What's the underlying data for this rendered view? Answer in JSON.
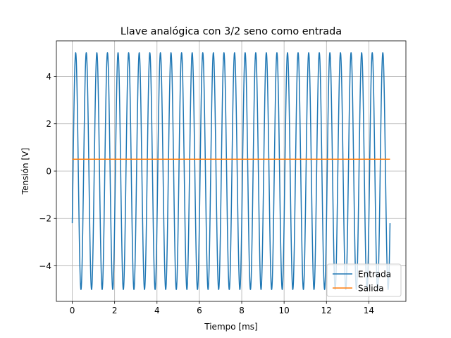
{
  "chart_data": {
    "type": "line",
    "title": "Llave analógica con 3/2 seno como entrada",
    "xlabel": "Tiempo [ms]",
    "ylabel": "Tensión [V]",
    "xlim": [
      -0.75,
      15.75
    ],
    "ylim": [
      -5.5,
      5.5
    ],
    "xticks": [
      0,
      2,
      4,
      6,
      8,
      10,
      12,
      14
    ],
    "yticks": [
      -4,
      -2,
      0,
      2,
      4
    ],
    "xtick_labels": [
      "0",
      "2",
      "4",
      "6",
      "8",
      "10",
      "12",
      "14"
    ],
    "ytick_labels": [
      "−4",
      "−2",
      "0",
      "2",
      "4"
    ],
    "grid": true,
    "legend_position": "bottom-right",
    "series": [
      {
        "name": "Entrada",
        "color": "#1f77b4",
        "description_signal": {
          "amplitude": 5,
          "freq_khz": 2.0,
          "phase_rad": -0.4556,
          "clip_below": null,
          "x_start": 0,
          "x_end": 15
        }
      },
      {
        "name": "Salida",
        "color": "#ff7f0e",
        "x": [
          0,
          15
        ],
        "y": [
          0.5,
          0.5
        ]
      }
    ]
  }
}
